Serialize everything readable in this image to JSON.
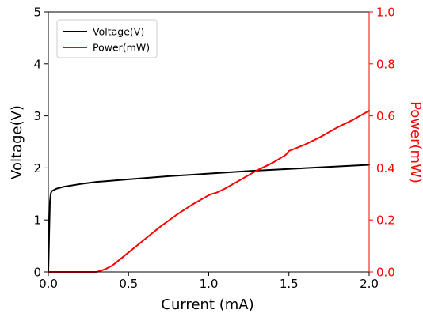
{
  "chart_data": {
    "type": "line",
    "title": "",
    "xlabel": "Current (mA)",
    "ylabel_left": "Voltage(V)",
    "ylabel_right": "Power(mW)",
    "xlim": [
      0.0,
      2.0
    ],
    "ylim_left": [
      0,
      5
    ],
    "ylim_right": [
      0.0,
      1.0
    ],
    "x_ticks": [
      "0.0",
      "0.5",
      "1.0",
      "1.5",
      "2.0"
    ],
    "y_left_ticks": [
      "0",
      "1",
      "2",
      "3",
      "4",
      "5"
    ],
    "y_right_ticks": [
      "0.0",
      "0.2",
      "0.4",
      "0.6",
      "0.8",
      "1.0"
    ],
    "grid": false,
    "legend_position": "top-left",
    "right_axis_color": "#ff0000",
    "series": [
      {
        "name": "Voltage(V)",
        "axis": "left",
        "color": "#000000",
        "x": [
          0,
          0.005,
          0.01,
          0.015,
          0.02,
          0.05,
          0.1,
          0.2,
          0.3,
          0.5,
          0.75,
          1.0,
          1.25,
          1.5,
          1.75,
          2.0
        ],
        "y": [
          0,
          0.7,
          1.35,
          1.5,
          1.55,
          1.6,
          1.64,
          1.69,
          1.73,
          1.78,
          1.84,
          1.89,
          1.94,
          1.98,
          2.02,
          2.06
        ]
      },
      {
        "name": "Power(mW)",
        "axis": "right",
        "color": "#ff0000",
        "x": [
          0,
          0.3,
          0.33,
          0.36,
          0.4,
          0.45,
          0.5,
          0.6,
          0.7,
          0.8,
          0.9,
          1.0,
          1.02,
          1.05,
          1.1,
          1.2,
          1.3,
          1.4,
          1.48,
          1.5,
          1.52,
          1.6,
          1.65,
          1.7,
          1.8,
          1.9,
          2.0
        ],
        "y": [
          0,
          0,
          0.005,
          0.012,
          0.025,
          0.05,
          0.075,
          0.125,
          0.175,
          0.22,
          0.26,
          0.295,
          0.3,
          0.305,
          0.32,
          0.355,
          0.39,
          0.42,
          0.45,
          0.465,
          0.47,
          0.49,
          0.505,
          0.52,
          0.555,
          0.585,
          0.62
        ]
      }
    ]
  }
}
